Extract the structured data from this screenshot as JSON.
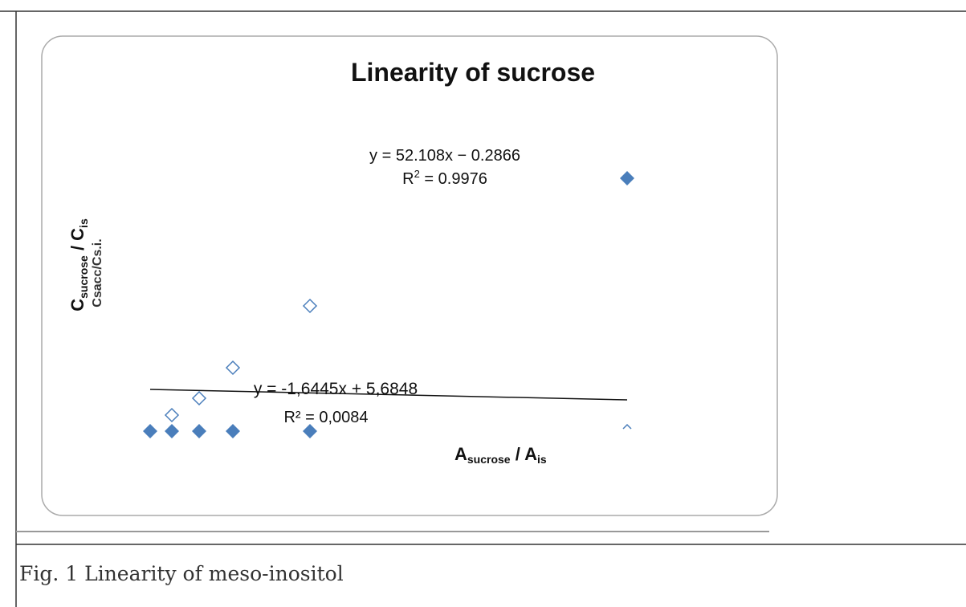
{
  "figure": {
    "title": "Linearity of sucrose",
    "equation_1": "y = 52.108x − 0.2866",
    "r2_1": {
      "prefix": "R",
      "sup": "2",
      "rest": " = 0.9976"
    },
    "equation_2": "y = -1,6445x + 5,6848",
    "r2_2": "R² = 0,0084",
    "y_label": {
      "main": "C",
      "sub": "sucrose",
      "mid": " / C",
      "sub2": "is"
    },
    "y_label_alt": "Csacc/Cs.i.",
    "x_label": {
      "main": "A",
      "sub": "sucrose",
      "mid": " / A",
      "sub2": "is"
    }
  },
  "caption": "Fig. 1 Linearity of meso-inositol"
}
